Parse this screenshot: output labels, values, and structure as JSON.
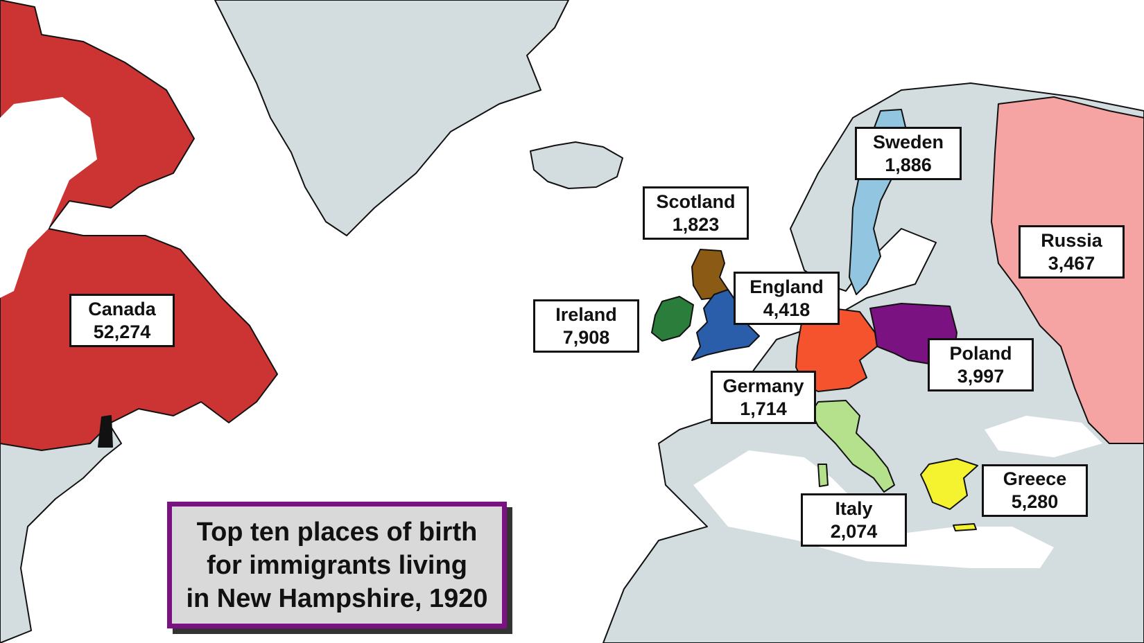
{
  "title": "Top ten places of birth\nfor immigrants living\nin New Hampshire, 1920",
  "places": [
    {
      "name": "Canada",
      "count": "52,274",
      "color": "#cc3333"
    },
    {
      "name": "Ireland",
      "count": "7,908",
      "color": "#2a7d3a"
    },
    {
      "name": "Greece",
      "count": "5,280",
      "color": "#f5f230"
    },
    {
      "name": "England",
      "count": "4,418",
      "color": "#2a5daa"
    },
    {
      "name": "Poland",
      "count": "3,997",
      "color": "#7b1282"
    },
    {
      "name": "Russia",
      "count": "3,467",
      "color": "#f5a3a3"
    },
    {
      "name": "Italy",
      "count": "2,074",
      "color": "#b5e08c"
    },
    {
      "name": "Sweden",
      "count": "1,886",
      "color": "#92c5df"
    },
    {
      "name": "Scotland",
      "count": "1,823",
      "color": "#8b5a14"
    },
    {
      "name": "Germany",
      "count": "1,714",
      "color": "#f5532d"
    }
  ],
  "colors": {
    "other_land": "#d3dcdf",
    "water": "#ffffff",
    "new_hampshire": "#111111",
    "title_border": "#7b1282",
    "title_fill": "#d9d9d9"
  }
}
